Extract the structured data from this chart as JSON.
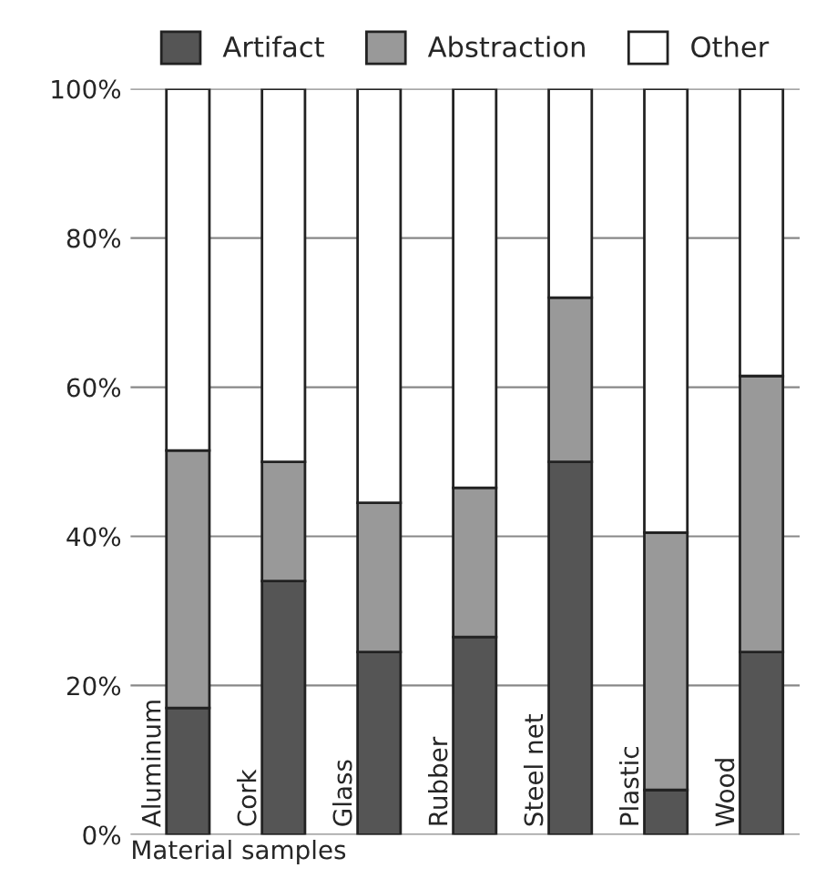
{
  "chart_data": {
    "type": "bar",
    "stacked": true,
    "xlabel": "Material samples",
    "categories": [
      "Aluminum",
      "Cork",
      "Glass",
      "Rubber",
      "Steel net",
      "Plastic",
      "Wood"
    ],
    "series": [
      {
        "name": "Artifact",
        "color": "#555555",
        "values": [
          17,
          34,
          24.5,
          26.5,
          50,
          6,
          24.5
        ]
      },
      {
        "name": "Abstraction",
        "color": "#999999",
        "values": [
          34.5,
          16,
          20,
          20,
          22,
          34.5,
          37
        ]
      },
      {
        "name": "Other",
        "color": "#ffffff",
        "values": [
          48.5,
          50,
          55.5,
          53.5,
          28,
          59.5,
          38.5
        ]
      }
    ],
    "ylim": [
      0,
      100
    ],
    "yticks": [
      {
        "value": 0,
        "label": "0%"
      },
      {
        "value": 20,
        "label": "20%"
      },
      {
        "value": 40,
        "label": "40%"
      },
      {
        "value": 60,
        "label": "60%"
      },
      {
        "value": 80,
        "label": "80%"
      },
      {
        "value": 100,
        "label": "100%"
      }
    ],
    "grid": "y",
    "legend": "top"
  }
}
